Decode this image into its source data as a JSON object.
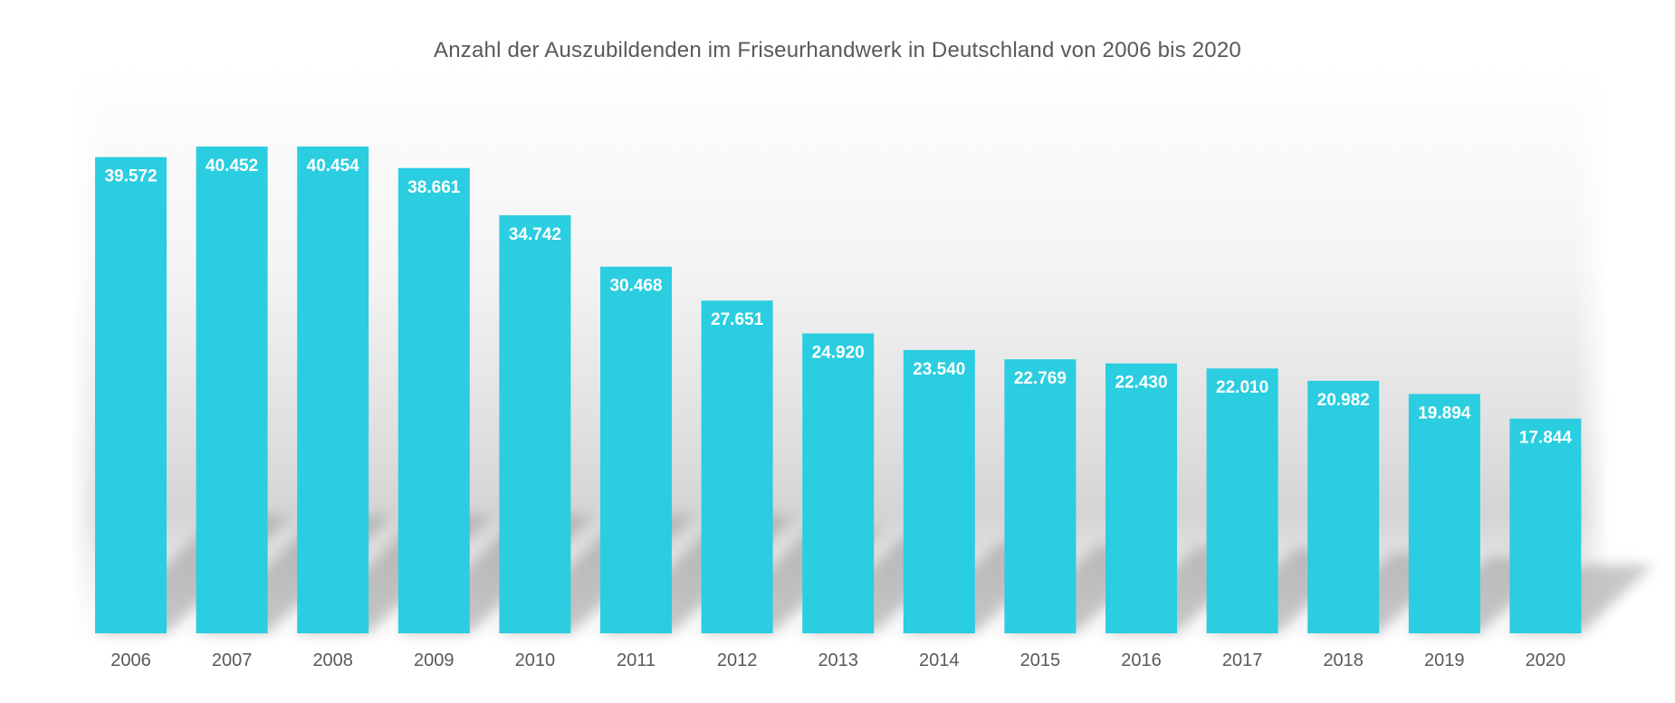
{
  "chart_data": {
    "type": "bar",
    "title": "Anzahl der Auszubildenden im Friseurhandwerk in Deutschland von 2006 bis 2020",
    "xlabel": "",
    "ylabel": "",
    "categories": [
      "2006",
      "2007",
      "2008",
      "2009",
      "2010",
      "2011",
      "2012",
      "2013",
      "2014",
      "2015",
      "2016",
      "2017",
      "2018",
      "2019",
      "2020"
    ],
    "values": [
      39572,
      40452,
      40454,
      38661,
      34742,
      30468,
      27651,
      24920,
      23540,
      22769,
      22430,
      22010,
      20982,
      19894,
      17844
    ],
    "value_labels": [
      "39.572",
      "40.452",
      "40.454",
      "38.661",
      "34.742",
      "30.468",
      "27.651",
      "24.920",
      "23.540",
      "22.769",
      "22.430",
      "22.010",
      "20.982",
      "19.894",
      "17.844"
    ],
    "ylim": [
      0,
      41500
    ],
    "grid": false,
    "legend": "none",
    "colors": {
      "bar": "#2BCDE0",
      "shadow": "#9a9a9a",
      "text": "#595959",
      "label": "#ffffff"
    }
  }
}
